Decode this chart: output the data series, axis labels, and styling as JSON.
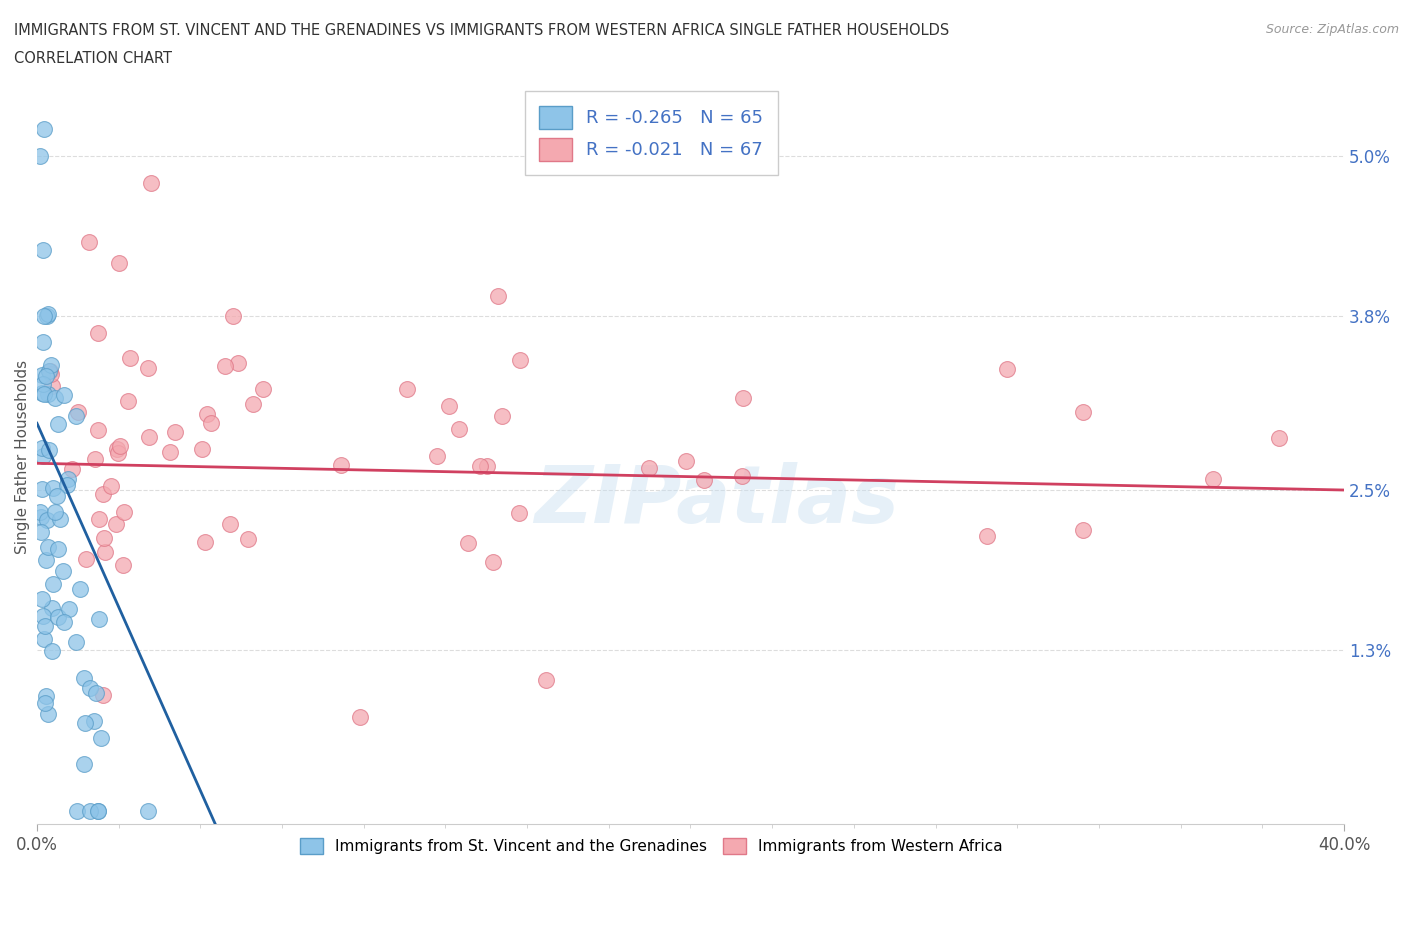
{
  "title_line1": "IMMIGRANTS FROM ST. VINCENT AND THE GRENADINES VS IMMIGRANTS FROM WESTERN AFRICA SINGLE FATHER HOUSEHOLDS",
  "title_line2": "CORRELATION CHART",
  "source": "Source: ZipAtlas.com",
  "ylabel": "Single Father Households",
  "xlim": [
    0.0,
    0.4
  ],
  "ylim": [
    0.0,
    0.055
  ],
  "yticks": [
    0.013,
    0.025,
    0.038,
    0.05
  ],
  "ytick_labels": [
    "1.3%",
    "2.5%",
    "3.8%",
    "5.0%"
  ],
  "blue_color": "#8ec4e8",
  "pink_color": "#f4a9b0",
  "blue_edge": "#5a9dc8",
  "pink_edge": "#e07888",
  "blue_line_color": "#2060a0",
  "pink_line_color": "#d04060",
  "dashed_line_color": "#aaccee",
  "R_blue": -0.265,
  "N_blue": 65,
  "R_pink": -0.021,
  "N_pink": 67,
  "legend_label_blue": "Immigrants from St. Vincent and the Grenadines",
  "legend_label_pink": "Immigrants from Western Africa",
  "watermark": "ZIPatlas",
  "grid_color": "#dddddd",
  "title_color": "#333333",
  "source_color": "#999999",
  "tick_color": "#4472C4"
}
